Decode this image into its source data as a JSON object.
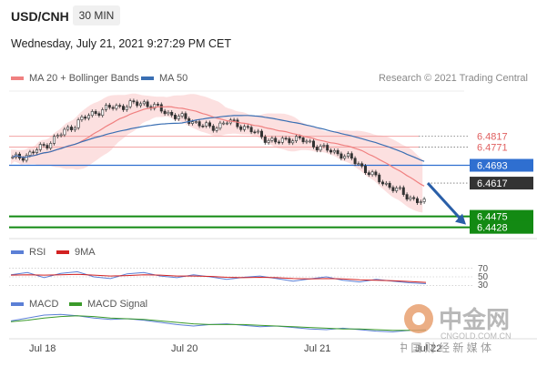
{
  "header": {
    "symbol": "USD/CNH",
    "interval": "30 MIN",
    "datetime": "Wednesday, July 21, 2021 9:27:29 PM CET"
  },
  "legend": {
    "ma20": "MA 20 + Bollinger Bands",
    "ma50": "MA 50",
    "credit": "Research © 2021 Trading Central",
    "rsi": "RSI",
    "nine_ma": "9MA",
    "macd": "MACD",
    "macd_signal": "MACD Signal"
  },
  "colors": {
    "ma20": "#f08080",
    "bollinger_fill": "#fbd3d3",
    "ma50": "#3a6fb3",
    "candle": "#333333",
    "resistance": "#e06060",
    "support": "#138a13",
    "current_price_bg": "#333333",
    "blue_level_bg": "#2f6fd0",
    "arrow": "#2a5fa8"
  },
  "levels": {
    "resistance": [
      "6.4817",
      "6.4771"
    ],
    "pivot": "6.4693",
    "current": "6.4617",
    "support": [
      "6.4475",
      "6.4428"
    ]
  },
  "chart_data": [
    {
      "type": "candlestick",
      "title": "USD/CNH 30 MIN",
      "x_labels": [
        "Jul 18",
        "Jul 20",
        "Jul 21",
        "Jul 22"
      ],
      "ylim": [
        6.438,
        6.501
      ],
      "close_path": [
        6.472,
        6.474,
        6.478,
        6.483,
        6.488,
        6.492,
        6.494,
        6.495,
        6.496,
        6.493,
        6.49,
        6.488,
        6.485,
        6.488,
        6.486,
        6.482,
        6.479,
        6.481,
        6.479,
        6.476,
        6.474,
        6.47,
        6.464,
        6.46,
        6.456,
        6.453
      ],
      "series": [
        {
          "name": "MA 20 + Bollinger Bands"
        },
        {
          "name": "MA 50"
        }
      ],
      "horizontal_levels": [
        6.4817,
        6.4771,
        6.4693,
        6.4617,
        6.4475,
        6.4428
      ]
    },
    {
      "type": "line",
      "title": "RSI",
      "levels": [
        70,
        50,
        30
      ],
      "series": [
        {
          "name": "RSI",
          "values": [
            55,
            60,
            48,
            58,
            62,
            50,
            46,
            57,
            60,
            52,
            48,
            55,
            50,
            44,
            49,
            52,
            46,
            40,
            45,
            50,
            42,
            38,
            44,
            40,
            36,
            34
          ]
        },
        {
          "name": "9MA",
          "values": [
            54,
            55,
            54,
            55,
            56,
            54,
            52,
            53,
            55,
            54,
            52,
            52,
            51,
            49,
            48,
            49,
            48,
            46,
            45,
            46,
            45,
            43,
            42,
            41,
            39,
            37
          ]
        }
      ]
    },
    {
      "type": "line",
      "title": "MACD",
      "series": [
        {
          "name": "MACD",
          "values": [
            0.2,
            0.6,
            1.0,
            1.1,
            0.9,
            0.6,
            0.4,
            0.5,
            0.3,
            0.0,
            -0.3,
            -0.5,
            -0.3,
            -0.2,
            -0.4,
            -0.6,
            -0.5,
            -0.7,
            -0.9,
            -1.0,
            -0.8,
            -1.0,
            -1.2,
            -1.3,
            -1.1,
            -1.0
          ]
        },
        {
          "name": "MACD Signal",
          "values": [
            0.1,
            0.3,
            0.6,
            0.8,
            0.9,
            0.8,
            0.6,
            0.5,
            0.4,
            0.2,
            0.0,
            -0.2,
            -0.3,
            -0.3,
            -0.3,
            -0.4,
            -0.5,
            -0.6,
            -0.7,
            -0.8,
            -0.9,
            -0.9,
            -1.0,
            -1.1,
            -1.1,
            -1.1
          ]
        }
      ]
    }
  ],
  "watermark": {
    "cn_name": "中金网",
    "url": "CNGOLD.COM.CN",
    "tagline": "中 国 财 经 新 媒 体"
  }
}
